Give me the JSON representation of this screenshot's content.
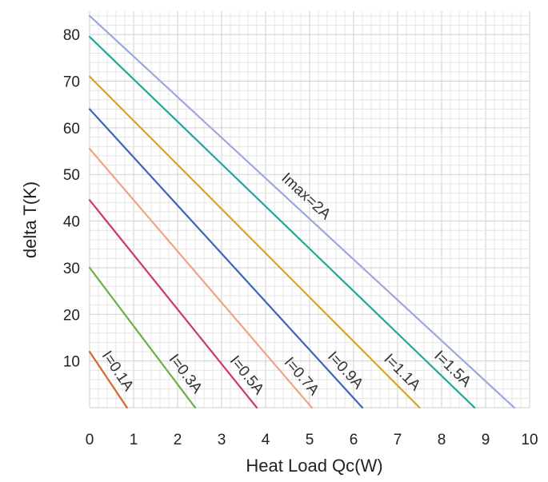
{
  "chart_data": {
    "type": "line",
    "title": "",
    "xlabel": "Heat Load Qc(W)",
    "ylabel": "delta T(K)",
    "xlim": [
      0,
      10
    ],
    "ylim": [
      0,
      85
    ],
    "x_ticks": [
      "0",
      "1",
      "2",
      "3",
      "4",
      "5",
      "6",
      "7",
      "8",
      "9",
      "10"
    ],
    "y_ticks": [
      "10",
      "20",
      "30",
      "40",
      "50",
      "60",
      "70",
      "80"
    ],
    "grid": true,
    "legend": "none",
    "series": [
      {
        "name": "I=0.1A",
        "color": "#d9652b",
        "points": [
          [
            0,
            12
          ],
          [
            0.85,
            0
          ]
        ]
      },
      {
        "name": "I=0.3A",
        "color": "#6cb043",
        "points": [
          [
            0,
            30
          ],
          [
            2.4,
            0
          ]
        ]
      },
      {
        "name": "I=0.5A",
        "color": "#cc3b5f",
        "points": [
          [
            0,
            44.5
          ],
          [
            3.8,
            0
          ]
        ]
      },
      {
        "name": "I=0.7A",
        "color": "#f2a285",
        "points": [
          [
            0,
            55.5
          ],
          [
            5.05,
            0
          ]
        ]
      },
      {
        "name": "I=0.9A",
        "color": "#3f63b8",
        "points": [
          [
            0,
            64
          ],
          [
            6.2,
            0
          ]
        ]
      },
      {
        "name": "I=1.1A",
        "color": "#d9a520",
        "points": [
          [
            0,
            71
          ],
          [
            7.5,
            0
          ]
        ]
      },
      {
        "name": "I=1.5A",
        "color": "#1fa89b",
        "points": [
          [
            0,
            79.5
          ],
          [
            8.75,
            0
          ]
        ]
      },
      {
        "name": "Imax=2A",
        "color": "#9da7dc",
        "points": [
          [
            0,
            84
          ],
          [
            9.65,
            0
          ]
        ]
      }
    ]
  }
}
